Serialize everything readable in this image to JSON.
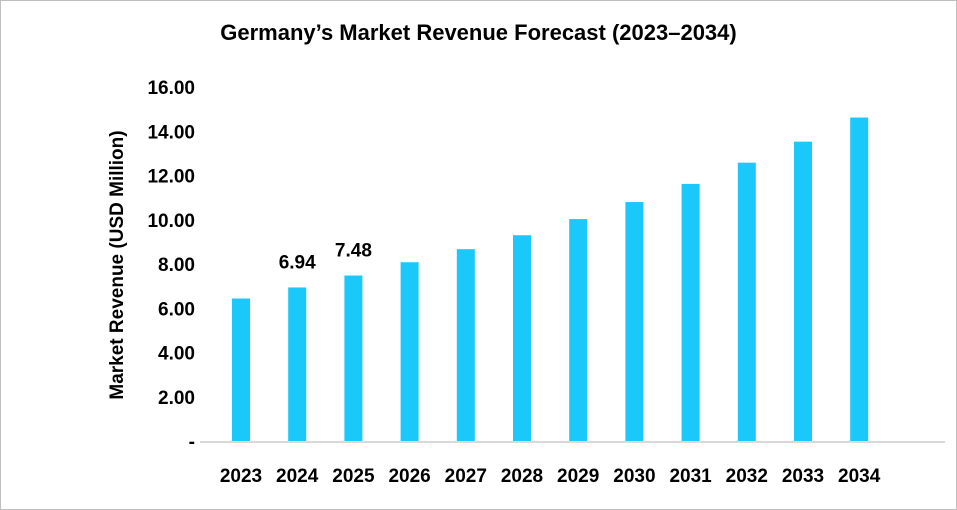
{
  "chart_data": {
    "type": "bar",
    "title": "Germany’s Market Revenue Forecast (2023–2034)",
    "xlabel": "",
    "ylabel": "Market Revenue (USD Million)",
    "categories": [
      "2023",
      "2024",
      "2025",
      "2026",
      "2027",
      "2028",
      "2029",
      "2030",
      "2031",
      "2032",
      "2033",
      "2034"
    ],
    "values": [
      6.44,
      6.94,
      7.48,
      8.08,
      8.67,
      9.3,
      10.03,
      10.8,
      11.62,
      12.58,
      13.53,
      14.62
    ],
    "data_labels": {
      "2024": "6.94",
      "2025": "7.48"
    },
    "ylim": [
      0,
      16
    ],
    "yticks": [
      "-",
      "2.00",
      "4.00",
      "6.00",
      "8.00",
      "10.00",
      "12.00",
      "14.00",
      "16.00"
    ],
    "grid": false,
    "legend": "none",
    "colors": {
      "bar": "#1bc8fa",
      "axis": "#d9d9d9"
    }
  }
}
